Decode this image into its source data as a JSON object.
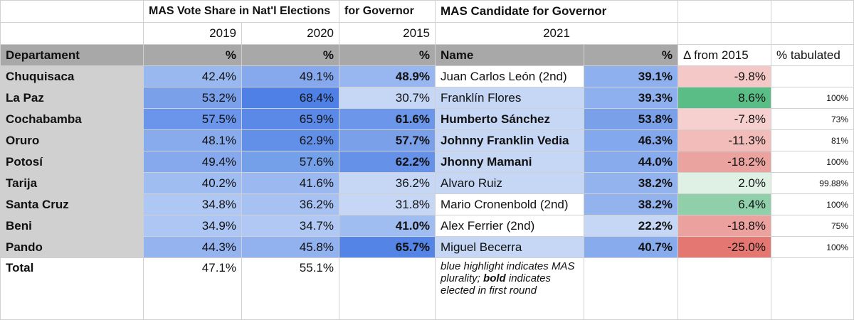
{
  "header": {
    "nat_title": "MAS Vote Share in Nat'l Elections",
    "gov_title": "for Governor",
    "cand_title": "MAS Candidate for Governor",
    "year_2019": "2019",
    "year_2020": "2020",
    "year_2015": "2015",
    "year_2021": "2021"
  },
  "columns": {
    "department": "Departament",
    "pct": "%",
    "name": "Name",
    "delta": "Δ from 2015",
    "tabulated": "% tabulated"
  },
  "rows": [
    {
      "dept": "Chuquisaca",
      "v2019": "42.4%",
      "v2020": "49.1%",
      "v2015": "48.9%",
      "v2015_bold": true,
      "name": "Juan Carlos León (2nd)",
      "name_bold": false,
      "v2021": "39.1%",
      "delta": "-9.8%",
      "tab": ""
    },
    {
      "dept": "La Paz",
      "v2019": "53.2%",
      "v2020": "68.4%",
      "v2015": "30.7%",
      "v2015_bold": false,
      "name": "Franklín Flores",
      "name_bold": false,
      "v2021": "39.3%",
      "delta": "8.6%",
      "tab": "100%"
    },
    {
      "dept": "Cochabamba",
      "v2019": "57.5%",
      "v2020": "65.9%",
      "v2015": "61.6%",
      "v2015_bold": true,
      "name": "Humberto Sánchez",
      "name_bold": true,
      "v2021": "53.8%",
      "delta": "-7.8%",
      "tab": "73%"
    },
    {
      "dept": "Oruro",
      "v2019": "48.1%",
      "v2020": "62.9%",
      "v2015": "57.7%",
      "v2015_bold": true,
      "name": "Johnny Franklin Vedia",
      "name_bold": true,
      "v2021": "46.3%",
      "delta": "-11.3%",
      "tab": "81%"
    },
    {
      "dept": "Potosí",
      "v2019": "49.4%",
      "v2020": "57.6%",
      "v2015": "62.2%",
      "v2015_bold": true,
      "name": "Jhonny Mamani",
      "name_bold": true,
      "v2021": "44.0%",
      "delta": "-18.2%",
      "tab": "100%"
    },
    {
      "dept": "Tarija",
      "v2019": "40.2%",
      "v2020": "41.6%",
      "v2015": "36.2%",
      "v2015_bold": false,
      "name": "Alvaro Ruiz",
      "name_bold": false,
      "v2021": "38.2%",
      "delta": "2.0%",
      "tab": "99.88%"
    },
    {
      "dept": "Santa Cruz",
      "v2019": "34.8%",
      "v2020": "36.2%",
      "v2015": "31.8%",
      "v2015_bold": false,
      "name": "Mario Cronenbold (2nd)",
      "name_bold": false,
      "v2021": "38.2%",
      "delta": "6.4%",
      "tab": "100%"
    },
    {
      "dept": "Beni",
      "v2019": "34.9%",
      "v2020": "34.7%",
      "v2015": "41.0%",
      "v2015_bold": true,
      "name": "Alex Ferrier (2nd)",
      "name_bold": false,
      "v2021": "22.2%",
      "delta": "-18.8%",
      "tab": "75%"
    },
    {
      "dept": "Pando",
      "v2019": "44.3%",
      "v2020": "45.8%",
      "v2015": "65.7%",
      "v2015_bold": true,
      "name": "Miguel Becerra",
      "name_bold": false,
      "v2021": "40.7%",
      "delta": "-25.0%",
      "tab": "100%"
    }
  ],
  "colors": {
    "rows": [
      {
        "v2019": "#9ab8f0",
        "v2020": "#86a9ee",
        "v2015": "#98b6f0",
        "name": "#ffffff",
        "v2021": "#8fb0ef",
        "delta": "#f4c8c6"
      },
      {
        "v2019": "#7aa0ea",
        "v2020": "#4e80e6",
        "v2015": "#c6d7f6",
        "name": "#c6d7f6",
        "v2021": "#8fb0ef",
        "delta": "#5bbd86"
      },
      {
        "v2019": "#6a95ea",
        "v2020": "#5a89e8",
        "v2015": "#6c96ea",
        "name": "#c6d7f6",
        "v2021": "#7aa0ea",
        "delta": "#f6d0ce"
      },
      {
        "v2019": "#88abee",
        "v2020": "#628fe8",
        "v2015": "#7aa0ea",
        "name": "#c6d7f6",
        "v2021": "#84a8ee",
        "delta": "#f1bcb9"
      },
      {
        "v2019": "#86a9ee",
        "v2020": "#74a0ea",
        "v2015": "#6591e8",
        "name": "#c6d7f6",
        "v2021": "#88abee",
        "delta": "#eba3a0"
      },
      {
        "v2019": "#a0bdf1",
        "v2020": "#9bb9f0",
        "v2015": "#c6d7f6",
        "name": "#c6d7f6",
        "v2021": "#93b3ef",
        "delta": "#dff1e5"
      },
      {
        "v2019": "#afc7f3",
        "v2020": "#a7c1f2",
        "v2015": "#c6d7f6",
        "name": "#ffffff",
        "v2021": "#93b3ef",
        "delta": "#8fd0aa"
      },
      {
        "v2019": "#aec6f3",
        "v2020": "#b0c8f3",
        "v2015": "#a0bdf1",
        "name": "#ffffff",
        "v2021": "#c6d7f6",
        "delta": "#eba19e"
      },
      {
        "v2019": "#94b3ef",
        "v2020": "#91b1ef",
        "v2015": "#5485e6",
        "name": "#c6d7f6",
        "v2021": "#88abee",
        "delta": "#e47771"
      }
    ]
  },
  "total": {
    "label": "Total",
    "v2019": "47.1%",
    "v2020": "55.1%"
  },
  "note": {
    "text1": "blue highlight indicates MAS plurality; ",
    "bold": "bold",
    "text2": " indicates elected in first round"
  }
}
